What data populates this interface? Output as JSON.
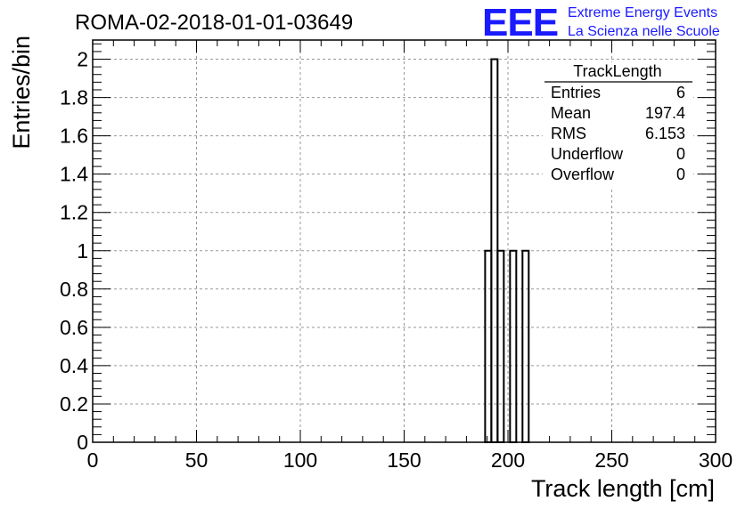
{
  "header": {
    "run_title": "ROMA-02-2018-01-01-03649",
    "logo_text": "EEE",
    "logo_line1": "Extreme Energy Events",
    "logo_line2": "La Scienza nelle Scuole",
    "logo_color": "#1a1aff"
  },
  "stats_box": {
    "title": "TrackLength",
    "rows": [
      {
        "label": "Entries",
        "value": "6"
      },
      {
        "label": "Mean",
        "value": "197.4"
      },
      {
        "label": "RMS",
        "value": "6.153"
      },
      {
        "label": "Underflow",
        "value": "0"
      },
      {
        "label": "Overflow",
        "value": "0"
      }
    ]
  },
  "chart_data": {
    "type": "bar",
    "histogram": true,
    "xlabel": "Track length [cm]",
    "ylabel": "Entries/bin",
    "xlim": [
      0,
      300
    ],
    "ylim": [
      0,
      2.1
    ],
    "grid": true,
    "x_ticks": [
      "0",
      "50",
      "100",
      "150",
      "200",
      "250",
      "300"
    ],
    "y_ticks": [
      "0",
      "0.2",
      "0.4",
      "0.6",
      "0.8",
      "1",
      "1.2",
      "1.4",
      "1.6",
      "1.8",
      "2"
    ],
    "bin_width": 3,
    "bins": [
      {
        "x0": 189,
        "x1": 192,
        "value": 1
      },
      {
        "x0": 192,
        "x1": 195,
        "value": 2
      },
      {
        "x0": 195,
        "x1": 198,
        "value": 1
      },
      {
        "x0": 201,
        "x1": 204,
        "value": 1
      },
      {
        "x0": 207,
        "x1": 210,
        "value": 1
      }
    ]
  }
}
